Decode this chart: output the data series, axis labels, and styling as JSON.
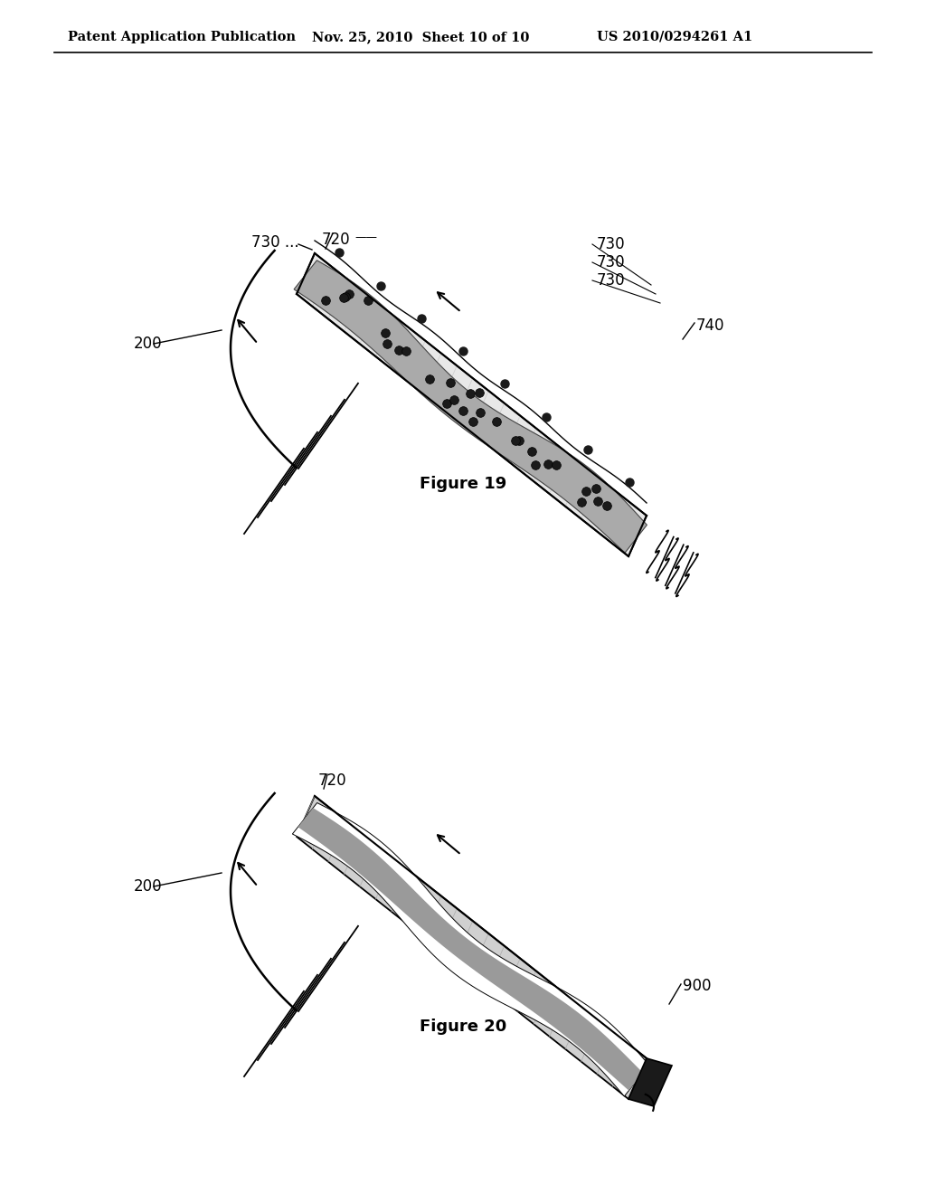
{
  "background_color": "#ffffff",
  "header_text": "Patent Application Publication",
  "header_date": "Nov. 25, 2010  Sheet 10 of 10",
  "header_patent": "US 2010/0294261 A1",
  "fig19_caption": "Figure 19",
  "fig20_caption": "Figure 20"
}
